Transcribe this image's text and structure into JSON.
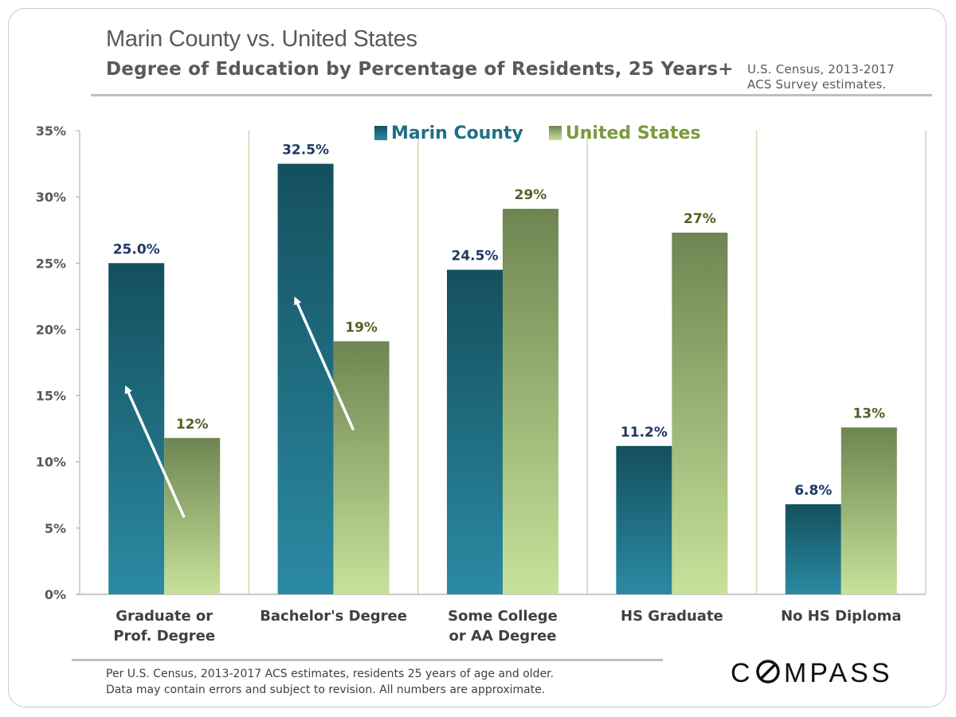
{
  "header": {
    "title": "Marin County vs. United States",
    "subtitle": "Degree of Education by Percentage of Residents, 25 Years+",
    "source_line1": "U.S. Census, 2013-2017",
    "source_line2": "ACS Survey estimates."
  },
  "footer": {
    "note_line1": "Per U.S. Census, 2013-2017 ACS estimates,  residents 25 years of age and older.",
    "note_line2": "Data may contain errors and subject to revision. All numbers are approximate.",
    "logo_text": "COMPASS"
  },
  "colors": {
    "marin_top": "#14505e",
    "marin_bottom": "#2b8aa3",
    "us_top": "#6e8552",
    "us_bottom": "#c7e29a",
    "marin_label": "#1f3864",
    "us_label": "#4f6228"
  },
  "chart_data": {
    "type": "bar",
    "categories": [
      [
        "Graduate or",
        "Prof. Degree"
      ],
      [
        "Bachelor's Degree"
      ],
      [
        "Some College",
        "or AA Degree"
      ],
      [
        "HS Graduate"
      ],
      [
        "No HS Diploma"
      ]
    ],
    "series": [
      {
        "name": "Marin County",
        "values": [
          25.0,
          32.5,
          24.5,
          11.2,
          6.8
        ],
        "labels": [
          "25.0%",
          "32.5%",
          "24.5%",
          "11.2%",
          "6.8%"
        ]
      },
      {
        "name": "United States",
        "values": [
          11.8,
          19.1,
          29.1,
          27.3,
          12.6
        ],
        "labels": [
          "12%",
          "19%",
          "29%",
          "27%",
          "13%"
        ]
      }
    ],
    "ylim": [
      0,
      35
    ],
    "yticks": [
      "0%",
      "5%",
      "10%",
      "15%",
      "20%",
      "25%",
      "30%",
      "35%"
    ],
    "legend_position": "top",
    "annotations": [
      "up-arrow graduate",
      "up-arrow bachelor"
    ]
  }
}
